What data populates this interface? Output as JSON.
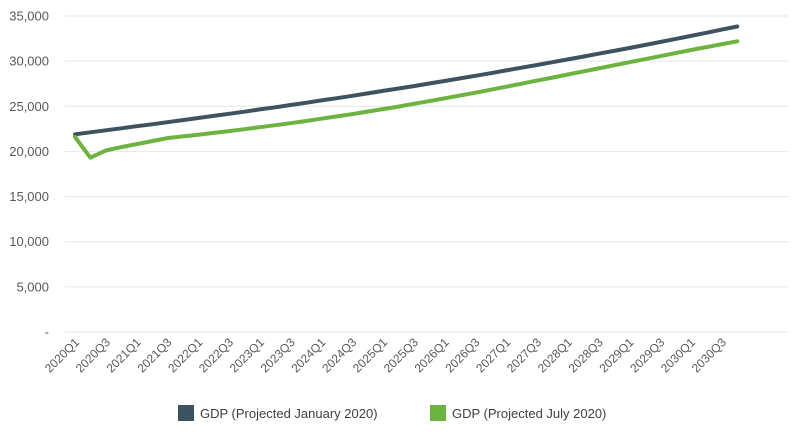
{
  "chart_data": {
    "type": "line",
    "title": "",
    "xlabel": "",
    "ylabel": "",
    "ylim": [
      0,
      35000
    ],
    "y_ticks": [
      {
        "value": 0,
        "label": "-"
      },
      {
        "value": 5000,
        "label": "5,000"
      },
      {
        "value": 10000,
        "label": "10,000"
      },
      {
        "value": 15000,
        "label": "15,000"
      },
      {
        "value": 20000,
        "label": "20,000"
      },
      {
        "value": 25000,
        "label": "25,000"
      },
      {
        "value": 30000,
        "label": "30,000"
      },
      {
        "value": 35000,
        "label": "35,000"
      }
    ],
    "grid": true,
    "legend_position": "bottom",
    "categories": [
      "2020Q1",
      "2020Q2",
      "2020Q3",
      "2020Q4",
      "2021Q1",
      "2021Q2",
      "2021Q3",
      "2021Q4",
      "2022Q1",
      "2022Q2",
      "2022Q3",
      "2022Q4",
      "2023Q1",
      "2023Q2",
      "2023Q3",
      "2023Q4",
      "2024Q1",
      "2024Q2",
      "2024Q3",
      "2024Q4",
      "2025Q1",
      "2025Q2",
      "2025Q3",
      "2025Q4",
      "2026Q1",
      "2026Q2",
      "2026Q3",
      "2026Q4",
      "2027Q1",
      "2027Q2",
      "2027Q3",
      "2027Q4",
      "2028Q1",
      "2028Q2",
      "2028Q3",
      "2028Q4",
      "2029Q1",
      "2029Q2",
      "2029Q3",
      "2029Q4",
      "2030Q1",
      "2030Q2",
      "2030Q3",
      "2030Q4"
    ],
    "x_tick_labels": [
      "2020Q1",
      "2020Q3",
      "2021Q1",
      "2021Q3",
      "2022Q1",
      "2022Q3",
      "2023Q1",
      "2023Q3",
      "2024Q1",
      "2024Q3",
      "2025Q1",
      "2025Q3",
      "2026Q1",
      "2026Q3",
      "2027Q1",
      "2027Q3",
      "2028Q1",
      "2028Q3",
      "2029Q1",
      "2029Q3",
      "2030Q1",
      "2030Q3"
    ],
    "series": [
      {
        "name": "GDP (Projected January 2020)",
        "color": "#3e5360",
        "values": [
          21900,
          22120,
          22340,
          22560,
          22790,
          23010,
          23240,
          23470,
          23700,
          23930,
          24170,
          24400,
          24650,
          24890,
          25140,
          25390,
          25650,
          25900,
          26160,
          26430,
          26700,
          26970,
          27240,
          27520,
          27800,
          28090,
          28380,
          28670,
          28970,
          29270,
          29570,
          29880,
          30190,
          30500,
          30820,
          31140,
          31460,
          31790,
          32120,
          32460,
          32800,
          33140,
          33490,
          33840
        ]
      },
      {
        "name": "GDP (Projected July 2020)",
        "color": "#6db33f",
        "values": [
          21600,
          19300,
          20100,
          20480,
          20810,
          21140,
          21480,
          21660,
          21850,
          22050,
          22250,
          22460,
          22680,
          22900,
          23130,
          23370,
          23620,
          23880,
          24140,
          24410,
          24690,
          24970,
          25270,
          25570,
          25880,
          26190,
          26510,
          26840,
          27170,
          27500,
          27840,
          28180,
          28520,
          28860,
          29200,
          29540,
          29880,
          30220,
          30550,
          30890,
          31230,
          31560,
          31880,
          32200
        ]
      }
    ]
  }
}
